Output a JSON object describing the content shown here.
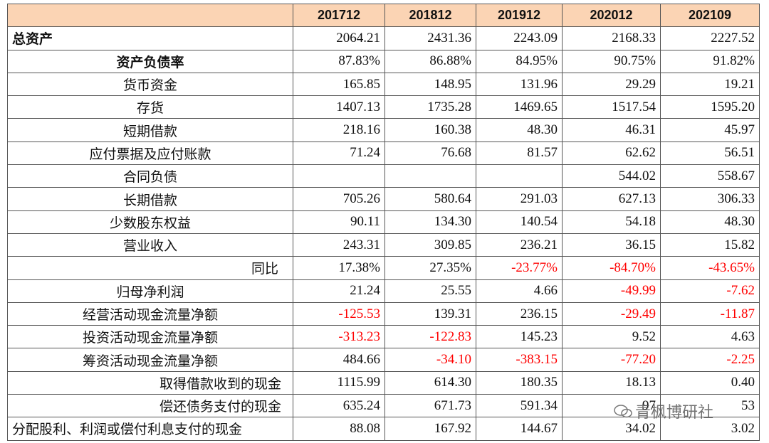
{
  "table": {
    "columns": [
      "201712",
      "201812",
      "201912",
      "202012",
      "202109"
    ],
    "rows": [
      {
        "label": "总资产",
        "values": [
          "2064.21",
          "2431.36",
          "2243.09",
          "2168.33",
          "2227.52"
        ]
      },
      {
        "label": "资产负债率",
        "values": [
          "87.83%",
          "86.88%",
          "84.95%",
          "90.75%",
          "91.82%"
        ]
      },
      {
        "label": "货币资金",
        "values": [
          "165.85",
          "148.95",
          "131.96",
          "29.29",
          "19.21"
        ]
      },
      {
        "label": "存货",
        "values": [
          "1407.13",
          "1735.28",
          "1469.65",
          "1517.54",
          "1595.20"
        ]
      },
      {
        "label": "短期借款",
        "values": [
          "218.16",
          "160.38",
          "48.30",
          "46.31",
          "45.97"
        ]
      },
      {
        "label": "应付票据及应付账款",
        "values": [
          "71.24",
          "76.68",
          "81.57",
          "62.62",
          "56.51"
        ]
      },
      {
        "label": "合同负债",
        "values": [
          null,
          null,
          null,
          "544.02",
          "558.67"
        ]
      },
      {
        "label": "长期借款",
        "values": [
          "705.26",
          "580.64",
          "291.03",
          "627.13",
          "306.33"
        ]
      },
      {
        "label": "少数股东权益",
        "values": [
          "90.11",
          "134.30",
          "140.54",
          "54.18",
          "48.30"
        ]
      },
      {
        "label": "营业收入",
        "values": [
          "243.31",
          "309.85",
          "236.21",
          "36.15",
          "15.82"
        ]
      },
      {
        "label": "同比",
        "values": [
          "17.38%",
          "27.35%",
          "-23.77%",
          "-84.70%",
          "-43.65%"
        ]
      },
      {
        "label": "归母净利润",
        "values": [
          "21.24",
          "25.55",
          "4.66",
          "-49.99",
          "-7.62"
        ]
      },
      {
        "label": "经营活动现金流量净额",
        "values": [
          "-125.53",
          "139.31",
          "236.15",
          "-29.49",
          "-11.87"
        ]
      },
      {
        "label": "投资活动现金流量净额",
        "values": [
          "-313.23",
          "-122.83",
          "145.23",
          "9.52",
          "4.63"
        ]
      },
      {
        "label": "筹资活动现金流量净额",
        "values": [
          "484.66",
          "-34.10",
          "-383.15",
          "-77.20",
          "-2.25"
        ]
      },
      {
        "label": "取得借款收到的现金",
        "values": [
          "1115.99",
          "614.30",
          "180.35",
          "18.13",
          "0.40"
        ]
      },
      {
        "label": "偿还债务支付的现金",
        "values": [
          "635.24",
          "671.73",
          "591.34",
          "97",
          "53"
        ]
      },
      {
        "label": "分配股利、利润或偿付利息支付的现金",
        "values": [
          "88.08",
          "167.92",
          "144.67",
          "34.02",
          "3.02"
        ]
      }
    ]
  },
  "watermark": "青枫博研社"
}
